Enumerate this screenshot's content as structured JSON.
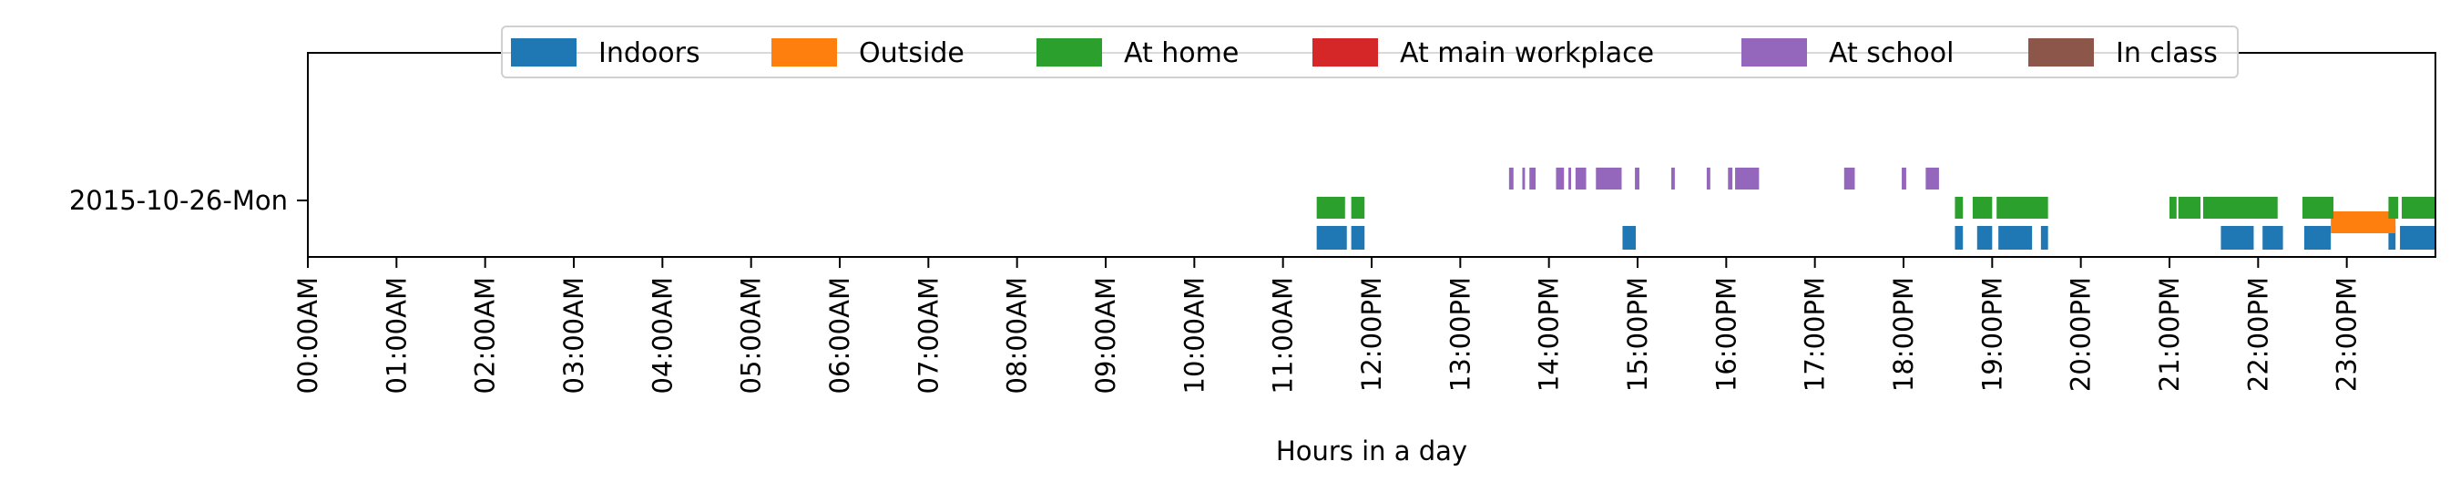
{
  "chart_data": {
    "type": "timeline",
    "title": "",
    "xlabel": "Hours in a day",
    "ylabel": "",
    "xlim": [
      0,
      24
    ],
    "y_categories": [
      "2015-10-26-Mon"
    ],
    "x_tick_labels": [
      "00:00AM",
      "01:00AM",
      "02:00AM",
      "03:00AM",
      "04:00AM",
      "05:00AM",
      "06:00AM",
      "07:00AM",
      "08:00AM",
      "09:00AM",
      "10:00AM",
      "11:00AM",
      "12:00PM",
      "13:00PM",
      "14:00PM",
      "15:00PM",
      "16:00PM",
      "17:00PM",
      "18:00PM",
      "19:00PM",
      "20:00PM",
      "21:00PM",
      "22:00PM",
      "23:00PM"
    ],
    "legend": {
      "placement": "top-center",
      "entries": [
        "Indoors",
        "Outside",
        "At home",
        "At main workplace",
        "At school",
        "In class"
      ]
    },
    "colors": {
      "Indoors": "#1f77b4",
      "Outside": "#ff7f0e",
      "At home": "#2ca02c",
      "At main workplace": "#d62728",
      "At school": "#9467bd",
      "In class": "#8c564b"
    },
    "series": [
      {
        "name": "Indoors",
        "intervals": [
          [
            11.38,
            11.72
          ],
          [
            11.77,
            11.92
          ],
          [
            14.83,
            14.98
          ],
          [
            18.58,
            18.67
          ],
          [
            18.83,
            19.0
          ],
          [
            19.07,
            19.45
          ],
          [
            19.55,
            19.63
          ],
          [
            21.58,
            21.95
          ],
          [
            22.05,
            22.28
          ],
          [
            22.52,
            22.82
          ],
          [
            23.47,
            23.55
          ],
          [
            23.6,
            24.0
          ]
        ]
      },
      {
        "name": "Outside",
        "intervals": [
          [
            22.82,
            23.55
          ]
        ]
      },
      {
        "name": "At home",
        "intervals": [
          [
            11.38,
            11.7
          ],
          [
            11.77,
            11.92
          ],
          [
            18.58,
            18.67
          ],
          [
            18.78,
            19.0
          ],
          [
            19.05,
            19.63
          ],
          [
            21.0,
            21.08
          ],
          [
            21.1,
            21.35
          ],
          [
            21.38,
            22.22
          ],
          [
            22.5,
            22.85
          ],
          [
            23.47,
            23.58
          ],
          [
            23.62,
            24.0
          ]
        ]
      },
      {
        "name": "At main workplace",
        "intervals": []
      },
      {
        "name": "At school",
        "intervals": [
          [
            13.55,
            13.6
          ],
          [
            13.7,
            13.73
          ],
          [
            13.78,
            13.85
          ],
          [
            14.08,
            14.17
          ],
          [
            14.22,
            14.25
          ],
          [
            14.3,
            14.42
          ],
          [
            14.53,
            14.82
          ],
          [
            14.97,
            15.02
          ],
          [
            15.38,
            15.42
          ],
          [
            15.78,
            15.82
          ],
          [
            16.02,
            16.07
          ],
          [
            16.1,
            16.37
          ],
          [
            17.33,
            17.45
          ],
          [
            17.98,
            18.03
          ],
          [
            18.25,
            18.4
          ]
        ]
      },
      {
        "name": "In class",
        "intervals": []
      }
    ]
  }
}
